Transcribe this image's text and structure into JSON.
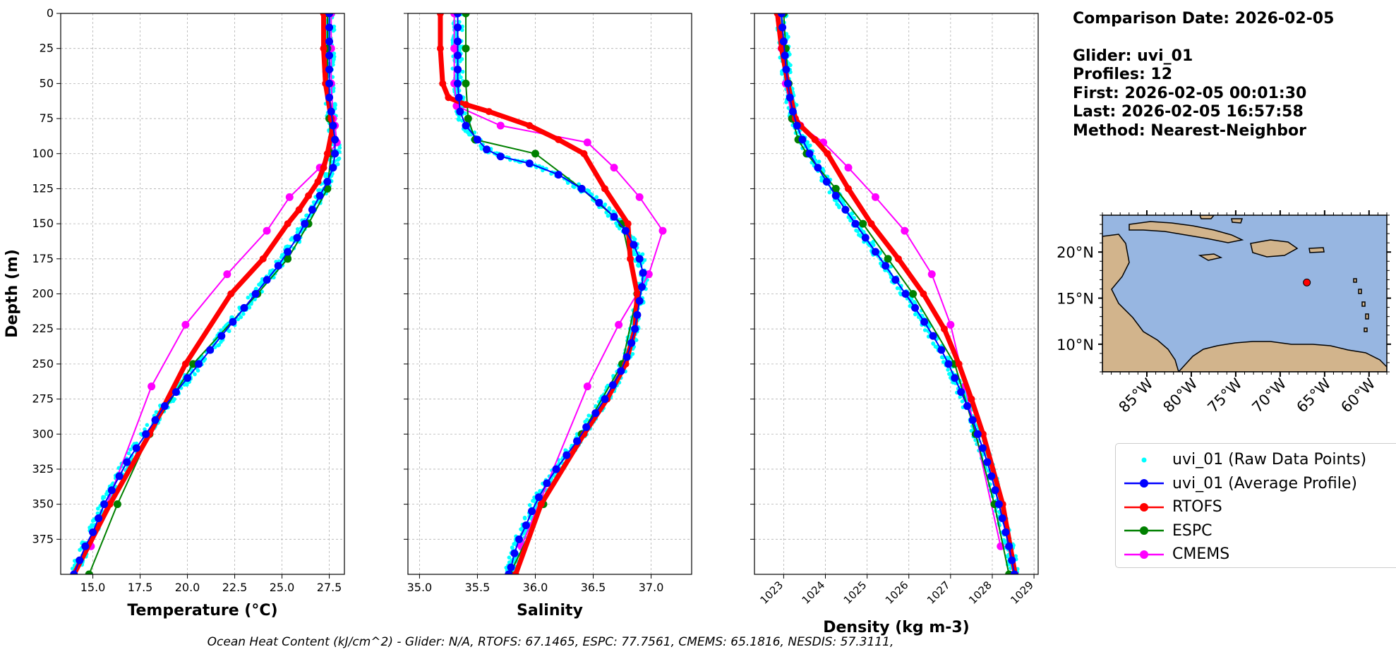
{
  "info": {
    "comparison": "Comparison Date: 2026-02-05",
    "glider": "Glider: uvi_01",
    "profiles": "Profiles: 12",
    "first": "First: 2026-02-05 00:01:30",
    "last": "Last: 2026-02-05 16:57:58",
    "method": "Method: Nearest-Neighbor"
  },
  "footer": "Ocean Heat Content (kJ/cm^2) - Glider: N/A,  RTOFS: 67.1465,  ESPC: 77.7561,  CMEMS: 65.1816,  NESDIS: 57.3111,",
  "legend": [
    {
      "label": "uvi_01 (Raw Data Points)",
      "color": "#00ffff",
      "style": "dots"
    },
    {
      "label": "uvi_01 (Average Profile)",
      "color": "#0000ff",
      "style": "line-marker"
    },
    {
      "label": "RTOFS",
      "color": "#ff0000",
      "style": "line-marker"
    },
    {
      "label": "ESPC",
      "color": "#008000",
      "style": "line-marker"
    },
    {
      "label": "CMEMS",
      "color": "#ff00ff",
      "style": "line-marker"
    }
  ],
  "map": {
    "lat_labels": [
      "20°N",
      "15°N",
      "10°N"
    ],
    "lon_labels": [
      "85°W",
      "80°W",
      "75°W",
      "70°W",
      "65°W",
      "60°W"
    ],
    "ocean_color": "#97b6e1",
    "land_color": "#d2b48c",
    "marker_color": "#ff0000",
    "marker": {
      "lat": 16.7,
      "lon": -67.0
    }
  },
  "chart_data": [
    {
      "type": "line",
      "xlabel": "Temperature (°C)",
      "ylabel": "Depth (m)",
      "xlim": [
        13.3,
        28.3
      ],
      "ylim": [
        400,
        0
      ],
      "xticks": [
        15.0,
        17.5,
        20.0,
        22.5,
        25.0,
        27.5
      ],
      "yticks": [
        0,
        25,
        50,
        75,
        100,
        125,
        150,
        175,
        200,
        225,
        250,
        275,
        300,
        325,
        350,
        375
      ],
      "grid": true,
      "series": [
        {
          "name": "uvi_01 (Average Profile)",
          "color": "#0000ff",
          "depth": [
            0,
            10,
            20,
            30,
            40,
            50,
            60,
            70,
            80,
            90,
            100,
            110,
            120,
            130,
            140,
            150,
            160,
            170,
            180,
            190,
            200,
            210,
            220,
            230,
            240,
            250,
            260,
            270,
            280,
            290,
            300,
            310,
            320,
            330,
            340,
            350,
            360,
            370,
            380,
            390,
            400
          ],
          "values": [
            27.5,
            27.5,
            27.5,
            27.5,
            27.5,
            27.5,
            27.5,
            27.6,
            27.7,
            27.8,
            27.8,
            27.7,
            27.4,
            27.0,
            26.6,
            26.2,
            25.8,
            25.3,
            24.8,
            24.2,
            23.6,
            23.0,
            22.4,
            21.8,
            21.2,
            20.6,
            20.0,
            19.4,
            18.8,
            18.3,
            17.8,
            17.3,
            16.8,
            16.4,
            16.0,
            15.6,
            15.3,
            15.0,
            14.6,
            14.3,
            14.0
          ]
        },
        {
          "name": "RTOFS",
          "color": "#ff0000",
          "depth": [
            0,
            25,
            50,
            75,
            80,
            100,
            110,
            120,
            130,
            140,
            150,
            175,
            200,
            250,
            300,
            350,
            400
          ],
          "values": [
            27.2,
            27.2,
            27.3,
            27.6,
            27.7,
            27.4,
            27.2,
            26.9,
            26.4,
            25.9,
            25.3,
            24.0,
            22.3,
            19.9,
            18.0,
            15.9,
            14.0
          ]
        },
        {
          "name": "ESPC",
          "color": "#008000",
          "depth": [
            0,
            25,
            50,
            75,
            100,
            125,
            150,
            175,
            200,
            250,
            300,
            350,
            400
          ],
          "values": [
            27.4,
            27.4,
            27.4,
            27.5,
            27.6,
            27.4,
            26.4,
            25.3,
            23.7,
            20.3,
            18.0,
            16.3,
            14.8
          ]
        },
        {
          "name": "CMEMS",
          "color": "#ff00ff",
          "depth": [
            0,
            25,
            50,
            75,
            80,
            92,
            110,
            131,
            155,
            186,
            222,
            266,
            380
          ],
          "values": [
            27.6,
            27.6,
            27.6,
            27.7,
            27.8,
            27.9,
            27.0,
            25.4,
            24.2,
            22.1,
            19.9,
            18.1,
            14.9
          ]
        }
      ]
    },
    {
      "type": "line",
      "xlabel": "Salinity",
      "ylabel": "",
      "xlim": [
        34.9,
        37.35
      ],
      "ylim": [
        400,
        0
      ],
      "xticks": [
        35.0,
        35.5,
        36.0,
        36.5,
        37.0
      ],
      "yticks": [
        0,
        25,
        50,
        75,
        100,
        125,
        150,
        175,
        200,
        225,
        250,
        275,
        300,
        325,
        350,
        375
      ],
      "grid": true,
      "series": [
        {
          "name": "uvi_01 (Average Profile)",
          "color": "#0000ff",
          "depth": [
            0,
            10,
            20,
            30,
            40,
            50,
            60,
            70,
            80,
            90,
            97,
            102,
            107,
            115,
            125,
            135,
            145,
            155,
            165,
            175,
            185,
            195,
            205,
            215,
            225,
            235,
            245,
            255,
            265,
            275,
            285,
            295,
            305,
            315,
            325,
            335,
            345,
            355,
            365,
            375,
            385,
            395,
            400
          ],
          "values": [
            35.33,
            35.33,
            35.33,
            35.33,
            35.33,
            35.33,
            35.34,
            35.35,
            35.4,
            35.5,
            35.58,
            35.7,
            35.95,
            36.2,
            36.4,
            36.55,
            36.68,
            36.78,
            36.85,
            36.9,
            36.93,
            36.92,
            36.9,
            36.88,
            36.86,
            36.83,
            36.79,
            36.74,
            36.67,
            36.6,
            36.52,
            36.44,
            36.36,
            36.27,
            36.18,
            36.1,
            36.03,
            35.97,
            35.92,
            35.86,
            35.82,
            35.79,
            35.77
          ]
        },
        {
          "name": "RTOFS",
          "color": "#ff0000",
          "depth": [
            0,
            25,
            50,
            60,
            65,
            70,
            80,
            90,
            100,
            125,
            150,
            175,
            200,
            225,
            250,
            275,
            300,
            350,
            400
          ],
          "values": [
            35.18,
            35.18,
            35.2,
            35.25,
            35.4,
            35.6,
            35.95,
            36.2,
            36.42,
            36.6,
            36.8,
            36.82,
            36.88,
            36.86,
            36.78,
            36.62,
            36.42,
            36.05,
            35.83
          ]
        },
        {
          "name": "ESPC",
          "color": "#008000",
          "depth": [
            0,
            25,
            50,
            75,
            90,
            100,
            125,
            150,
            200,
            250,
            300,
            350,
            400
          ],
          "values": [
            35.4,
            35.4,
            35.4,
            35.42,
            35.48,
            36.0,
            36.4,
            36.75,
            36.88,
            36.75,
            36.4,
            36.07,
            35.78
          ]
        },
        {
          "name": "CMEMS",
          "color": "#ff00ff",
          "depth": [
            0,
            25,
            50,
            66,
            80,
            92,
            110,
            131,
            155,
            186,
            222,
            266,
            380
          ],
          "values": [
            35.3,
            35.3,
            35.3,
            35.32,
            35.7,
            36.45,
            36.68,
            36.9,
            37.1,
            36.98,
            36.72,
            36.45,
            35.88
          ]
        }
      ]
    },
    {
      "type": "line",
      "xlabel": "Density (kg m-3)",
      "ylabel": "",
      "xlim": [
        1022.3,
        1029.1
      ],
      "ylim": [
        400,
        0
      ],
      "xticks": [
        1023,
        1024,
        1025,
        1026,
        1027,
        1028,
        1029
      ],
      "yticks": [
        0,
        25,
        50,
        75,
        100,
        125,
        150,
        175,
        200,
        225,
        250,
        275,
        300,
        325,
        350,
        375
      ],
      "grid": true,
      "series": [
        {
          "name": "uvi_01 (Average Profile)",
          "color": "#0000ff",
          "depth": [
            0,
            10,
            20,
            30,
            40,
            50,
            60,
            70,
            80,
            90,
            100,
            110,
            120,
            130,
            140,
            150,
            160,
            170,
            180,
            190,
            200,
            210,
            220,
            230,
            240,
            250,
            260,
            270,
            280,
            290,
            300,
            310,
            320,
            330,
            340,
            350,
            360,
            370,
            380,
            390,
            400
          ],
          "values": [
            1022.95,
            1022.97,
            1023.0,
            1023.03,
            1023.06,
            1023.1,
            1023.15,
            1023.22,
            1023.32,
            1023.45,
            1023.62,
            1023.82,
            1024.03,
            1024.25,
            1024.48,
            1024.72,
            1024.96,
            1025.2,
            1025.44,
            1025.68,
            1025.92,
            1026.15,
            1026.37,
            1026.58,
            1026.78,
            1026.95,
            1027.1,
            1027.25,
            1027.4,
            1027.53,
            1027.65,
            1027.77,
            1027.88,
            1027.98,
            1028.07,
            1028.16,
            1028.24,
            1028.32,
            1028.4,
            1028.47,
            1028.53
          ]
        },
        {
          "name": "RTOFS",
          "color": "#ff0000",
          "depth": [
            0,
            25,
            50,
            75,
            80,
            90,
            100,
            125,
            150,
            175,
            200,
            225,
            250,
            275,
            300,
            350,
            400
          ],
          "values": [
            1022.85,
            1022.95,
            1023.1,
            1023.28,
            1023.4,
            1023.75,
            1024.05,
            1024.55,
            1025.1,
            1025.75,
            1026.35,
            1026.85,
            1027.2,
            1027.5,
            1027.78,
            1028.25,
            1028.55
          ]
        },
        {
          "name": "ESPC",
          "color": "#008000",
          "depth": [
            0,
            25,
            50,
            75,
            90,
            100,
            125,
            150,
            175,
            200,
            250,
            300,
            350,
            400
          ],
          "values": [
            1023.0,
            1023.05,
            1023.12,
            1023.2,
            1023.35,
            1023.55,
            1024.25,
            1024.9,
            1025.5,
            1026.1,
            1027.1,
            1027.6,
            1028.05,
            1028.4
          ]
        },
        {
          "name": "CMEMS",
          "color": "#ff00ff",
          "depth": [
            0,
            25,
            50,
            75,
            80,
            92,
            110,
            131,
            155,
            186,
            222,
            266,
            380
          ],
          "values": [
            1022.9,
            1022.95,
            1023.05,
            1023.2,
            1023.4,
            1023.95,
            1024.55,
            1025.2,
            1025.9,
            1026.55,
            1027.0,
            1027.35,
            1028.2
          ]
        }
      ]
    }
  ]
}
